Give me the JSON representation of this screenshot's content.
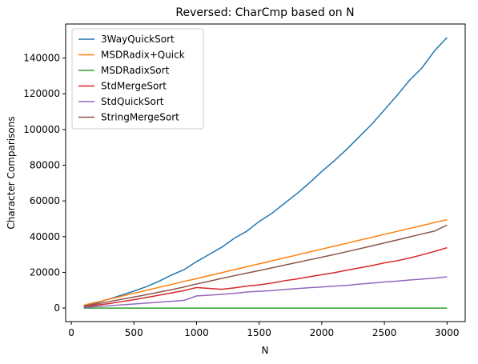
{
  "chart_data": {
    "type": "line",
    "title": "Reversed: CharCmp based on N",
    "xlabel": "N",
    "ylabel": "Character Comparisons",
    "x": [
      100,
      200,
      300,
      400,
      500,
      600,
      700,
      800,
      900,
      1000,
      1100,
      1200,
      1300,
      1400,
      1500,
      1600,
      1700,
      1800,
      1900,
      2000,
      2100,
      2200,
      2300,
      2400,
      2500,
      2600,
      2700,
      2800,
      2900,
      3000
    ],
    "series": [
      {
        "name": "3WayQuickSort",
        "color": "#1f77b4",
        "values": [
          1200,
          3000,
          5000,
          7200,
          9500,
          12000,
          15000,
          18500,
          21500,
          26000,
          30000,
          34000,
          39000,
          43000,
          48500,
          53000,
          58500,
          64000,
          70000,
          76500,
          82500,
          89000,
          96000,
          103000,
          111000,
          119000,
          127500,
          134500,
          144000,
          151500
        ]
      },
      {
        "name": "MSDRadix+Quick",
        "color": "#ff7f0e",
        "values": [
          1600,
          3300,
          4900,
          6600,
          8300,
          9900,
          11600,
          13200,
          14900,
          16500,
          18200,
          19800,
          21500,
          23100,
          24800,
          26400,
          28100,
          29700,
          31400,
          33000,
          34700,
          36300,
          38000,
          39600,
          41300,
          42900,
          44600,
          46200,
          47900,
          49500
        ]
      },
      {
        "name": "MSDRadixSort",
        "color": "#2ca02c",
        "values": [
          0,
          0,
          0,
          0,
          0,
          0,
          0,
          0,
          0,
          0,
          0,
          0,
          0,
          0,
          0,
          0,
          0,
          0,
          0,
          0,
          0,
          0,
          0,
          0,
          0,
          0,
          0,
          0,
          0,
          0
        ]
      },
      {
        "name": "StdMergeSort",
        "color": "#d62728",
        "values": [
          700,
          1600,
          2500,
          3600,
          4700,
          5900,
          7200,
          8500,
          9800,
          11500,
          11000,
          10500,
          11300,
          12300,
          13000,
          14000,
          15300,
          16300,
          17500,
          18700,
          19800,
          21200,
          22500,
          23800,
          25300,
          26500,
          28000,
          29800,
          31700,
          33800
        ]
      },
      {
        "name": "StdQuickSort",
        "color": "#9467bd",
        "values": [
          400,
          800,
          1300,
          1800,
          2300,
          2800,
          3300,
          3800,
          4300,
          6800,
          7200,
          7700,
          8200,
          9000,
          9400,
          9800,
          10400,
          10900,
          11400,
          11800,
          12300,
          12700,
          13400,
          14000,
          14600,
          15100,
          15700,
          16200,
          16800,
          17500
        ]
      },
      {
        "name": "StringMergeSort",
        "color": "#8c564b",
        "values": [
          1000,
          2300,
          3600,
          4900,
          6200,
          7500,
          8900,
          10300,
          11800,
          13500,
          15000,
          16600,
          18100,
          19600,
          21000,
          22500,
          24000,
          25500,
          27000,
          28500,
          30000,
          31600,
          33200,
          34800,
          36500,
          38100,
          39800,
          41500,
          43100,
          46500
        ]
      }
    ],
    "xlim": [
      -45,
      3145
    ],
    "ylim": [
      -7575,
      159075
    ],
    "xticks": [
      0,
      500,
      1000,
      1500,
      2000,
      2500,
      3000
    ],
    "yticks": [
      0,
      20000,
      40000,
      60000,
      80000,
      100000,
      120000,
      140000
    ],
    "legend": "upper left",
    "grid": false
  }
}
